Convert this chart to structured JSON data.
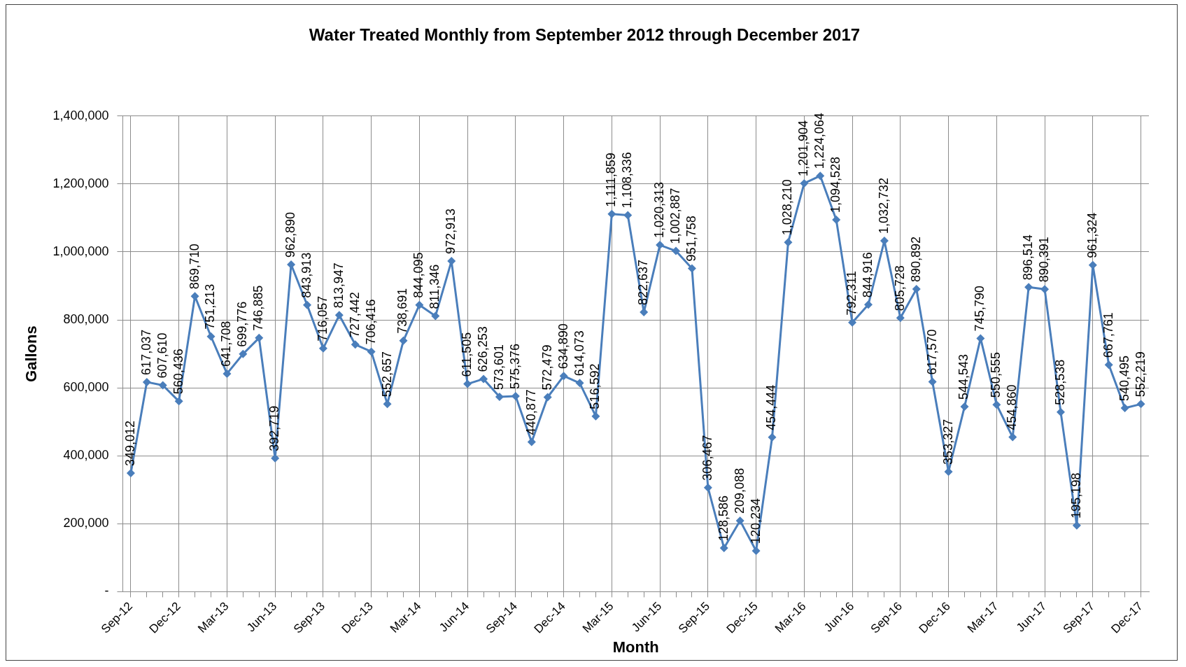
{
  "chart_data": {
    "type": "line",
    "title": "Water Treated Monthly from September 2012 through December 2017",
    "xlabel": "Month",
    "ylabel": "Gallons",
    "categories": [
      "Sep-12",
      null,
      null,
      "Dec-12",
      null,
      null,
      "Mar-13",
      null,
      null,
      "Jun-13",
      null,
      null,
      "Sep-13",
      null,
      null,
      "Dec-13",
      null,
      null,
      "Mar-14",
      null,
      null,
      "Jun-14",
      null,
      null,
      "Sep-14",
      null,
      null,
      "Dec-14",
      null,
      null,
      "Mar-15",
      null,
      null,
      "Jun-15",
      null,
      null,
      "Sep-15",
      null,
      null,
      "Dec-15",
      null,
      null,
      "Mar-16",
      null,
      null,
      "Jun-16",
      null,
      null,
      "Sep-16",
      null,
      null,
      "Dec-16",
      null,
      null,
      "Mar-17",
      null,
      null,
      "Jun-17",
      null,
      null,
      "Sep-17",
      null,
      null,
      "Dec-17"
    ],
    "series": [
      {
        "color": "#4a7ebb",
        "values": [
          349012,
          617037,
          607610,
          560436,
          869710,
          751213,
          641708,
          699776,
          746885,
          392719,
          962890,
          843913,
          716057,
          813947,
          727442,
          706416,
          552657,
          738691,
          844095,
          811346,
          972913,
          611505,
          626253,
          573601,
          575376,
          440877,
          572479,
          634890,
          614073,
          516592,
          1111859,
          1108336,
          822637,
          1020313,
          1002887,
          951758,
          306467,
          128586,
          209088,
          120234,
          454444,
          1028210,
          1201904,
          1224064,
          1094528,
          792311,
          844916,
          1032732,
          805728,
          890892,
          617570,
          353327,
          544543,
          745790,
          550555,
          454860,
          896514,
          890391,
          528538,
          195198,
          961324,
          667761,
          540495,
          552219
        ],
        "value_labels": [
          "349,012",
          "617,037",
          "607,610",
          "560,436",
          "869,710",
          "751,213",
          "641,708",
          "699,776",
          "746,885",
          "392,719",
          "962,890",
          "843,913",
          "716,057",
          "813,947",
          "727,442",
          "706,416",
          "552,657",
          "738,691",
          "844,095",
          "811,346",
          "972,913",
          "611,505",
          "626,253",
          "573,601",
          "575,376",
          "440,877",
          "572,479",
          "634,890",
          "614,073",
          "516,592",
          "1,111,859",
          "1,108,336",
          "822,637",
          "1,020,313",
          "1,002,887",
          "951,758",
          "306,467",
          "128,586",
          "209,088",
          "120,234",
          "454,444",
          "1,028,210",
          "1,201,904",
          "1,224,064",
          "1,094,528",
          "792,311",
          "844,916",
          "1,032,732",
          "805,728",
          "890,892",
          "617,570",
          "353,327",
          "544,543",
          "745,790",
          "550,555",
          "454,860",
          "896,514",
          "890,391",
          "528,538",
          "195,198",
          "961,324",
          "667,761",
          "540,495",
          "552,219"
        ]
      }
    ],
    "ylim": [
      0,
      1400000
    ],
    "yticks": [
      {
        "value": 0,
        "label": "-"
      },
      {
        "value": 200000,
        "label": "200,000"
      },
      {
        "value": 400000,
        "label": "400,000"
      },
      {
        "value": 600000,
        "label": "600,000"
      },
      {
        "value": 800000,
        "label": "800,000"
      },
      {
        "value": 1000000,
        "label": "1,000,000"
      },
      {
        "value": 1200000,
        "label": "1,200,000"
      },
      {
        "value": 1400000,
        "label": "1,400,000"
      }
    ],
    "grid": true,
    "legend": false,
    "marker": "diamond",
    "line_style": "solid"
  }
}
